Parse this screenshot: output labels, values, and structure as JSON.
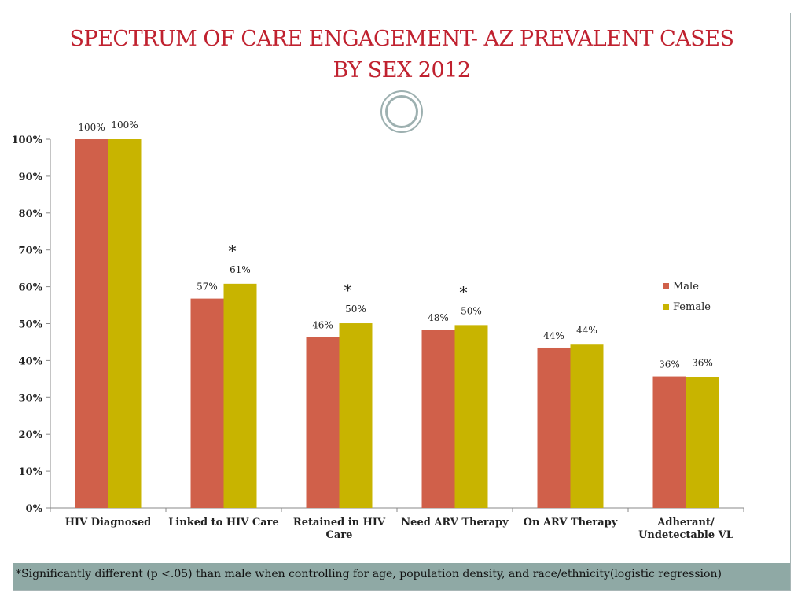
{
  "slide": {
    "title_line1": "SPECTRUM OF CARE ENGAGEMENT- AZ PREVALENT CASES",
    "title_line2": "BY SEX 2012",
    "footnote": "*Significantly different (p <.05) than male when controlling for age, population density, and race/ethnicity(logistic regression)"
  },
  "colors": {
    "title": "#c0212f",
    "male": "#d0604a",
    "female": "#c8b400",
    "footnote_bar": "#8fa9a5"
  },
  "chart_data": {
    "type": "bar",
    "title": "SPECTRUM OF CARE ENGAGEMENT- AZ PREVALENT CASES BY SEX 2012",
    "categories": [
      [
        "HIV Diagnosed"
      ],
      [
        "Linked to HIV Care"
      ],
      [
        "Retained in HIV",
        "Care"
      ],
      [
        "Need ARV Therapy"
      ],
      [
        "On ARV Therapy"
      ],
      [
        "Adherant/",
        "Undetectable VL"
      ]
    ],
    "series": [
      {
        "name": "Male",
        "values": [
          100,
          56.8,
          46.4,
          48.4,
          43.5,
          35.7
        ],
        "labels": [
          "100%",
          "57%",
          "46%",
          "48%",
          "44%",
          "36%"
        ]
      },
      {
        "name": "Female",
        "values": [
          100,
          60.8,
          50.1,
          49.6,
          44.3,
          35.5
        ],
        "labels": [
          "100%",
          "61%",
          "50%",
          "50%",
          "44%",
          "36%"
        ]
      }
    ],
    "significance_markers": [
      "",
      "*",
      "*",
      "*",
      "",
      ""
    ],
    "ylim": [
      0,
      100
    ],
    "yticks": [
      "0%",
      "10%",
      "20%",
      "30%",
      "40%",
      "50%",
      "60%",
      "70%",
      "80%",
      "90%",
      "100%"
    ],
    "legend_position": "right",
    "xlabel": "",
    "ylabel": ""
  }
}
